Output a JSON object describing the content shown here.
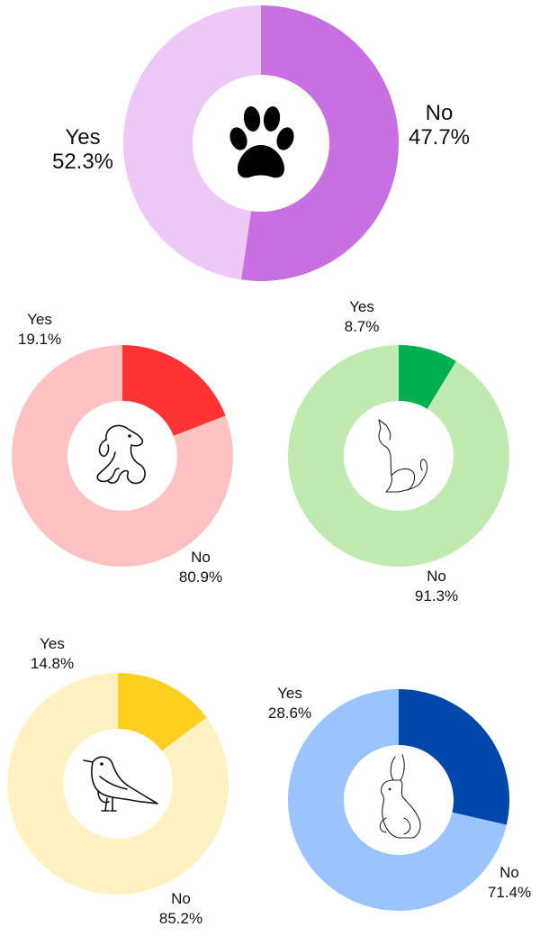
{
  "chart_data": [
    {
      "type": "pie",
      "icon": "paw-icon",
      "categories": [
        "Yes",
        "No"
      ],
      "values": [
        52.3,
        47.7
      ],
      "value_labels": [
        "52.3%",
        "47.7%"
      ],
      "colors": [
        "#c86fe2",
        "#edc9f7"
      ]
    },
    {
      "type": "pie",
      "icon": "dog-icon",
      "categories": [
        "Yes",
        "No"
      ],
      "values": [
        19.1,
        80.9
      ],
      "value_labels": [
        "19.1%",
        "80.9%"
      ],
      "colors": [
        "#ff3333",
        "#ffc2c2"
      ]
    },
    {
      "type": "pie",
      "icon": "cat-icon",
      "categories": [
        "Yes",
        "No"
      ],
      "values": [
        8.7,
        91.3
      ],
      "value_labels": [
        "8.7%",
        "91.3%"
      ],
      "colors": [
        "#00b050",
        "#c0ebb0"
      ]
    },
    {
      "type": "pie",
      "icon": "bird-icon",
      "categories": [
        "Yes",
        "No"
      ],
      "values": [
        14.8,
        85.2
      ],
      "value_labels": [
        "14.8%",
        "85.2%"
      ],
      "colors": [
        "#ffd020",
        "#fff2c2"
      ]
    },
    {
      "type": "pie",
      "icon": "rabbit-icon",
      "categories": [
        "Yes",
        "No"
      ],
      "values": [
        28.6,
        71.4
      ],
      "value_labels": [
        "28.6%",
        "71.4%"
      ],
      "colors": [
        "#0047ab",
        "#99c4ff"
      ]
    }
  ]
}
